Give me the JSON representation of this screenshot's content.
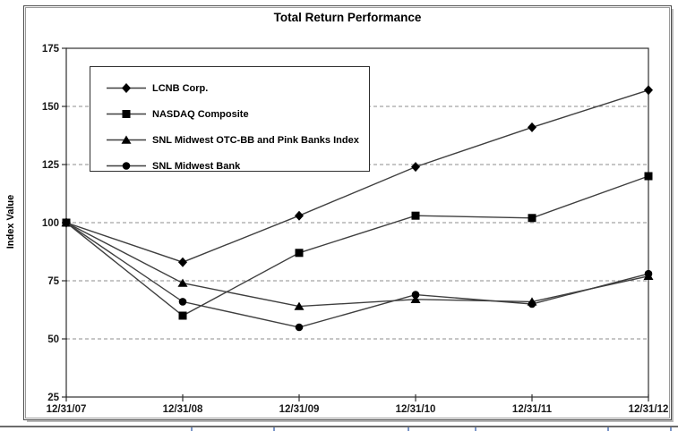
{
  "chart_data": {
    "type": "line",
    "title": "Total Return Performance",
    "ylabel": "Index Value",
    "categories": [
      "12/31/07",
      "12/31/08",
      "12/31/09",
      "12/31/10",
      "12/31/11",
      "12/31/12"
    ],
    "series": [
      {
        "name": "LCNB Corp.",
        "marker": "diamond",
        "values": [
          100,
          83,
          103,
          124,
          141,
          157
        ]
      },
      {
        "name": "NASDAQ Composite",
        "marker": "square",
        "values": [
          100,
          60,
          87,
          103,
          102,
          120
        ]
      },
      {
        "name": "SNL Midwest OTC-BB and Pink Banks Index",
        "marker": "triangle",
        "values": [
          100,
          74,
          64,
          67,
          66,
          77
        ]
      },
      {
        "name": "SNL Midwest Bank",
        "marker": "circle",
        "values": [
          100,
          66,
          55,
          69,
          65,
          78
        ]
      }
    ],
    "ylim": [
      25,
      175
    ],
    "yticks": [
      25,
      50,
      75,
      100,
      125,
      150,
      175
    ],
    "grid": "horizontal dashed gridlines at 50, 75, 100, 125, 150",
    "legend_position": "upper-left inside plot area",
    "colors": {
      "line": "#3f3f3f",
      "marker": "#000000",
      "gridline": "#8c8c8c",
      "axis": "#2f2f2f",
      "frame": "#4c4c4c",
      "table_rule": "#6b6b6b",
      "table_tick_blue": "#7b96c8"
    }
  },
  "table_rule": {
    "tick_positions_x": [
      213,
      305,
      455,
      530,
      678,
      748
    ]
  }
}
